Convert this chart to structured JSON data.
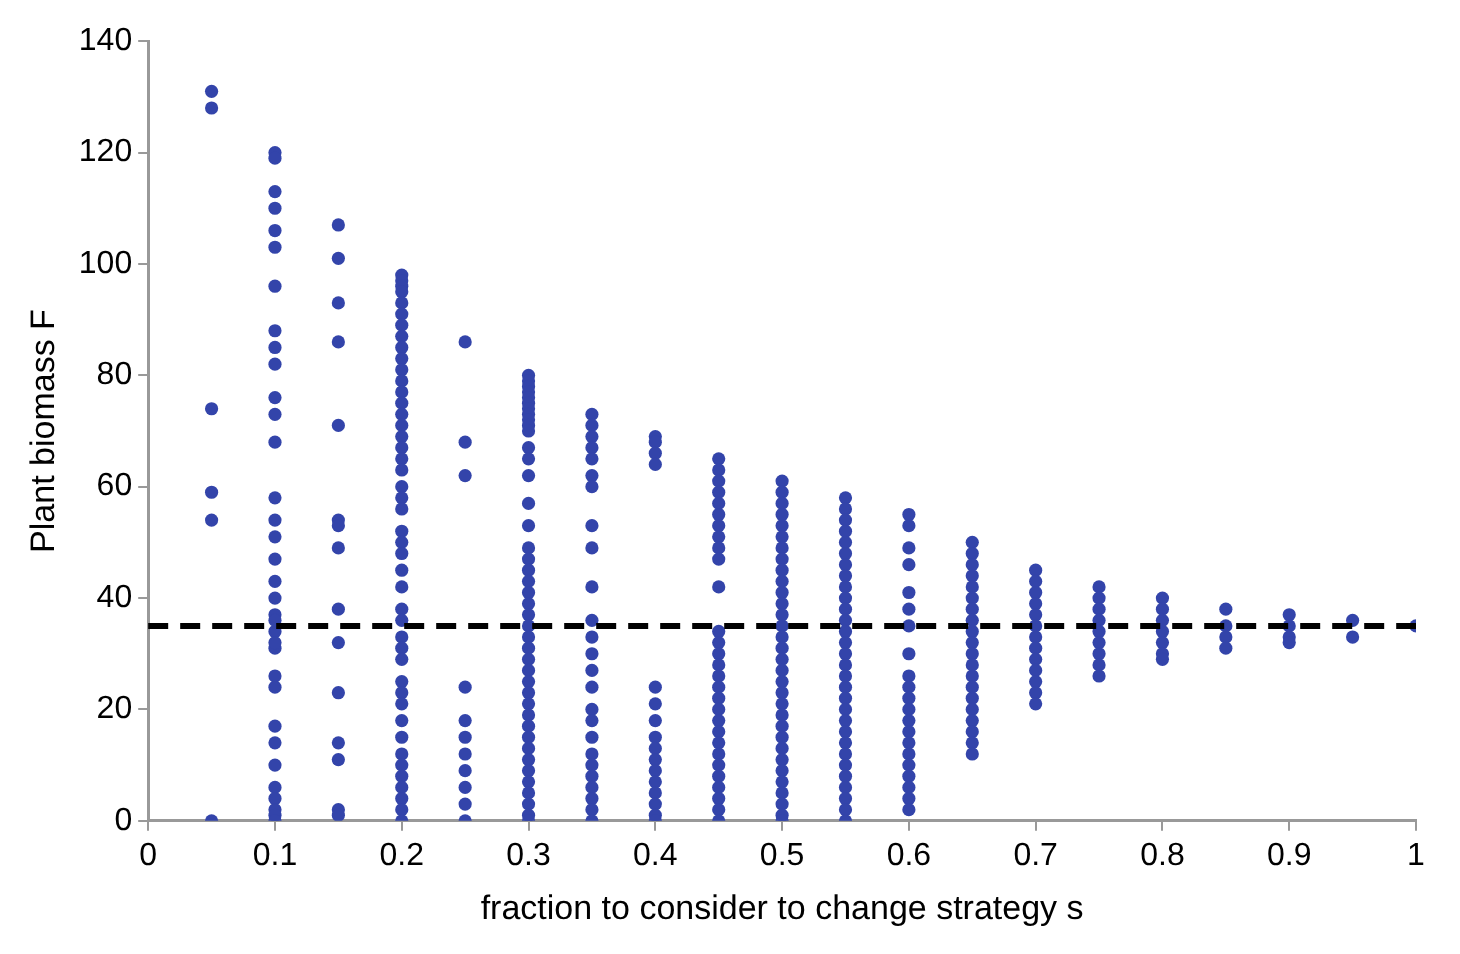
{
  "chart_data": {
    "type": "scatter",
    "xlabel": "fraction to consider to change strategy s",
    "ylabel": "Plant biomass F",
    "xlim": [
      0,
      1
    ],
    "xticks": [
      0,
      0.1,
      0.2,
      0.3,
      0.4,
      0.5,
      0.6,
      0.7,
      0.8,
      0.9,
      1
    ],
    "ylim": [
      0,
      140
    ],
    "yticks": [
      0,
      20,
      40,
      60,
      80,
      100,
      120,
      140
    ],
    "grid": false,
    "legend": false,
    "marker": "circle",
    "ref_lines": [
      {
        "axis": "y",
        "value": 35,
        "color": "#000000",
        "line_style": "dashed"
      }
    ],
    "series": [
      {
        "color": "#3344aa",
        "x": [
          0.05,
          0.05,
          0.05,
          0.05,
          0.05,
          0.05
        ],
        "values": [
          131,
          128,
          74,
          59,
          54,
          0
        ]
      },
      {
        "color": "#3344aa",
        "x": [
          0.1,
          0.1,
          0.1,
          0.1,
          0.1,
          0.1,
          0.1,
          0.1,
          0.1,
          0.1,
          0.1,
          0.1,
          0.1,
          0.1,
          0.1,
          0.1,
          0.1,
          0.1,
          0.1,
          0.1,
          0.1,
          0.1,
          0.1,
          0.1,
          0.1,
          0.1,
          0.1,
          0.1,
          0.1,
          0.1,
          0.1,
          0.1,
          0.1,
          0.1
        ],
        "values": [
          120,
          119,
          113,
          110,
          106,
          103,
          96,
          88,
          85,
          82,
          76,
          73,
          68,
          58,
          54,
          51,
          47,
          43,
          40,
          37,
          34,
          31,
          26,
          24,
          17,
          14,
          10,
          6,
          4,
          2,
          1,
          0,
          36,
          32
        ]
      },
      {
        "color": "#3344aa",
        "x": [
          0.15,
          0.15,
          0.15,
          0.15,
          0.15,
          0.15,
          0.15,
          0.15,
          0.15,
          0.15,
          0.15,
          0.15,
          0.15,
          0.15,
          0.15
        ],
        "values": [
          107,
          101,
          93,
          86,
          71,
          54,
          53,
          49,
          38,
          32,
          23,
          14,
          11,
          2,
          1
        ]
      },
      {
        "color": "#3344aa",
        "x": [
          0.2,
          0.2,
          0.2,
          0.2,
          0.2,
          0.2,
          0.2,
          0.2,
          0.2,
          0.2,
          0.2,
          0.2,
          0.2,
          0.2,
          0.2,
          0.2,
          0.2,
          0.2,
          0.2,
          0.2,
          0.2,
          0.2,
          0.2,
          0.2,
          0.2,
          0.2,
          0.2,
          0.2,
          0.2,
          0.2,
          0.2,
          0.2,
          0.2,
          0.2,
          0.2,
          0.2,
          0.2,
          0.2,
          0.2,
          0.2,
          0.2,
          0.2,
          0.2,
          0.2,
          0.2
        ],
        "values": [
          98,
          97,
          96,
          95,
          93,
          91,
          89,
          87,
          85,
          83,
          81,
          79,
          77,
          75,
          73,
          71,
          69,
          67,
          65,
          63,
          60,
          58,
          56,
          52,
          50,
          48,
          45,
          42,
          38,
          36,
          33,
          31,
          29,
          25,
          23,
          21,
          18,
          15,
          12,
          10,
          8,
          6,
          4,
          2,
          0
        ]
      },
      {
        "color": "#3344aa",
        "x": [
          0.25,
          0.25,
          0.25,
          0.25,
          0.25,
          0.25,
          0.25,
          0.25,
          0.25,
          0.25,
          0.25
        ],
        "values": [
          86,
          68,
          62,
          24,
          18,
          15,
          12,
          9,
          6,
          3,
          0
        ]
      },
      {
        "color": "#3344aa",
        "x": [
          0.3,
          0.3,
          0.3,
          0.3,
          0.3,
          0.3,
          0.3,
          0.3,
          0.3,
          0.3,
          0.3,
          0.3,
          0.3,
          0.3,
          0.3,
          0.3,
          0.3,
          0.3,
          0.3,
          0.3,
          0.3,
          0.3,
          0.3,
          0.3,
          0.3,
          0.3,
          0.3,
          0.3,
          0.3,
          0.3,
          0.3,
          0.3,
          0.3,
          0.3,
          0.3,
          0.3,
          0.3,
          0.3,
          0.3,
          0.3,
          0.3,
          0.3
        ],
        "values": [
          80,
          79,
          78,
          77,
          76,
          75,
          74,
          73,
          72,
          71,
          70,
          67,
          65,
          62,
          57,
          53,
          49,
          47,
          45,
          43,
          41,
          39,
          37,
          35,
          33,
          31,
          29,
          27,
          25,
          23,
          21,
          19,
          17,
          15,
          13,
          11,
          9,
          7,
          5,
          3,
          1,
          0
        ]
      },
      {
        "color": "#3344aa",
        "x": [
          0.35,
          0.35,
          0.35,
          0.35,
          0.35,
          0.35,
          0.35,
          0.35,
          0.35,
          0.35,
          0.35,
          0.35,
          0.35,
          0.35,
          0.35,
          0.35,
          0.35,
          0.35,
          0.35,
          0.35,
          0.35,
          0.35,
          0.35,
          0.35,
          0.35
        ],
        "values": [
          73,
          71,
          69,
          67,
          65,
          62,
          60,
          53,
          49,
          42,
          36,
          33,
          30,
          27,
          24,
          20,
          18,
          15,
          12,
          10,
          8,
          6,
          4,
          2,
          0
        ]
      },
      {
        "color": "#3344aa",
        "x": [
          0.4,
          0.4,
          0.4,
          0.4,
          0.4,
          0.4,
          0.4,
          0.4,
          0.4,
          0.4,
          0.4,
          0.4,
          0.4,
          0.4,
          0.4,
          0.4
        ],
        "values": [
          69,
          68,
          66,
          64,
          24,
          21,
          18,
          15,
          13,
          11,
          9,
          7,
          5,
          3,
          1,
          0
        ]
      },
      {
        "color": "#3344aa",
        "x": [
          0.45,
          0.45,
          0.45,
          0.45,
          0.45,
          0.45,
          0.45,
          0.45,
          0.45,
          0.45,
          0.45,
          0.45,
          0.45,
          0.45,
          0.45,
          0.45,
          0.45,
          0.45,
          0.45,
          0.45,
          0.45,
          0.45,
          0.45,
          0.45,
          0.45,
          0.45,
          0.45,
          0.45,
          0.45
        ],
        "values": [
          65,
          63,
          61,
          59,
          57,
          55,
          53,
          51,
          49,
          47,
          42,
          34,
          32,
          30,
          28,
          26,
          24,
          22,
          20,
          18,
          16,
          14,
          12,
          10,
          8,
          6,
          4,
          2,
          0
        ]
      },
      {
        "color": "#3344aa",
        "x": [
          0.5,
          0.5,
          0.5,
          0.5,
          0.5,
          0.5,
          0.5,
          0.5,
          0.5,
          0.5,
          0.5,
          0.5,
          0.5,
          0.5,
          0.5,
          0.5,
          0.5,
          0.5,
          0.5,
          0.5,
          0.5,
          0.5,
          0.5,
          0.5,
          0.5,
          0.5,
          0.5,
          0.5,
          0.5,
          0.5,
          0.5,
          0.5
        ],
        "values": [
          61,
          59,
          57,
          55,
          53,
          51,
          49,
          47,
          45,
          43,
          41,
          39,
          37,
          35,
          33,
          31,
          29,
          27,
          25,
          23,
          21,
          19,
          17,
          15,
          13,
          11,
          9,
          7,
          5,
          3,
          1,
          0
        ]
      },
      {
        "color": "#3344aa",
        "x": [
          0.55,
          0.55,
          0.55,
          0.55,
          0.55,
          0.55,
          0.55,
          0.55,
          0.55,
          0.55,
          0.55,
          0.55,
          0.55,
          0.55,
          0.55,
          0.55,
          0.55,
          0.55,
          0.55,
          0.55,
          0.55,
          0.55,
          0.55,
          0.55,
          0.55,
          0.55,
          0.55,
          0.55,
          0.55,
          0.55
        ],
        "values": [
          58,
          56,
          54,
          52,
          50,
          48,
          46,
          44,
          42,
          40,
          38,
          36,
          34,
          32,
          30,
          28,
          26,
          24,
          22,
          20,
          18,
          16,
          14,
          12,
          10,
          8,
          6,
          4,
          2,
          0
        ]
      },
      {
        "color": "#3344aa",
        "x": [
          0.6,
          0.6,
          0.6,
          0.6,
          0.6,
          0.6,
          0.6,
          0.6,
          0.6,
          0.6,
          0.6,
          0.6,
          0.6,
          0.6,
          0.6,
          0.6,
          0.6,
          0.6,
          0.6,
          0.6,
          0.6
        ],
        "values": [
          55,
          53,
          49,
          46,
          41,
          38,
          35,
          30,
          26,
          24,
          22,
          20,
          18,
          16,
          14,
          12,
          10,
          8,
          6,
          4,
          2
        ]
      },
      {
        "color": "#3344aa",
        "x": [
          0.65,
          0.65,
          0.65,
          0.65,
          0.65,
          0.65,
          0.65,
          0.65,
          0.65,
          0.65,
          0.65,
          0.65,
          0.65,
          0.65,
          0.65,
          0.65,
          0.65,
          0.65,
          0.65,
          0.65
        ],
        "values": [
          50,
          48,
          46,
          44,
          42,
          40,
          38,
          36,
          34,
          32,
          30,
          28,
          26,
          24,
          22,
          20,
          18,
          16,
          14,
          12
        ]
      },
      {
        "color": "#3344aa",
        "x": [
          0.7,
          0.7,
          0.7,
          0.7,
          0.7,
          0.7,
          0.7,
          0.7,
          0.7,
          0.7,
          0.7,
          0.7,
          0.7
        ],
        "values": [
          45,
          43,
          41,
          39,
          37,
          35,
          33,
          31,
          29,
          27,
          25,
          23,
          21
        ]
      },
      {
        "color": "#3344aa",
        "x": [
          0.75,
          0.75,
          0.75,
          0.75,
          0.75,
          0.75,
          0.75,
          0.75,
          0.75
        ],
        "values": [
          42,
          40,
          38,
          36,
          34,
          32,
          30,
          28,
          26
        ]
      },
      {
        "color": "#3344aa",
        "x": [
          0.8,
          0.8,
          0.8,
          0.8,
          0.8,
          0.8,
          0.8
        ],
        "values": [
          40,
          38,
          36,
          34,
          32,
          30,
          29
        ]
      },
      {
        "color": "#3344aa",
        "x": [
          0.85,
          0.85,
          0.85,
          0.85
        ],
        "values": [
          38,
          35,
          33,
          31
        ]
      },
      {
        "color": "#3344aa",
        "x": [
          0.9,
          0.9,
          0.9,
          0.9
        ],
        "values": [
          37,
          35,
          33,
          32
        ]
      },
      {
        "color": "#3344aa",
        "x": [
          0.95,
          0.95
        ],
        "values": [
          36,
          33
        ]
      },
      {
        "color": "#3344aa",
        "x": [
          1
        ],
        "values": [
          35
        ]
      }
    ]
  }
}
